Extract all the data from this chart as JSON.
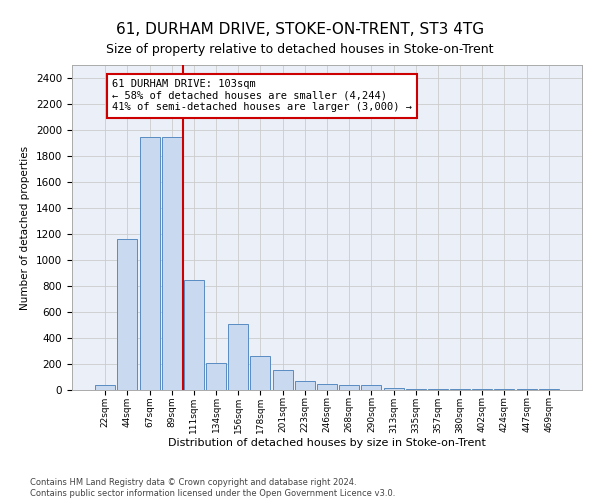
{
  "title": "61, DURHAM DRIVE, STOKE-ON-TRENT, ST3 4TG",
  "subtitle": "Size of property relative to detached houses in Stoke-on-Trent",
  "xlabel": "Distribution of detached houses by size in Stoke-on-Trent",
  "ylabel": "Number of detached properties",
  "categories": [
    "22sqm",
    "44sqm",
    "67sqm",
    "89sqm",
    "111sqm",
    "134sqm",
    "156sqm",
    "178sqm",
    "201sqm",
    "223sqm",
    "246sqm",
    "268sqm",
    "290sqm",
    "313sqm",
    "335sqm",
    "357sqm",
    "380sqm",
    "402sqm",
    "424sqm",
    "447sqm",
    "469sqm"
  ],
  "values": [
    40,
    1160,
    1950,
    1950,
    850,
    210,
    510,
    260,
    155,
    70,
    50,
    40,
    35,
    15,
    5,
    5,
    5,
    5,
    5,
    5,
    5
  ],
  "bar_color": "#c9d9f0",
  "bar_edge_color": "#5a8cc2",
  "red_line_x": 3.5,
  "annotation_text": "61 DURHAM DRIVE: 103sqm\n← 58% of detached houses are smaller (4,244)\n41% of semi-detached houses are larger (3,000) →",
  "annotation_box_color": "#ffffff",
  "annotation_box_edge_color": "#cc0000",
  "ylim": [
    0,
    2500
  ],
  "yticks": [
    0,
    200,
    400,
    600,
    800,
    1000,
    1200,
    1400,
    1600,
    1800,
    2000,
    2200,
    2400
  ],
  "footer_line1": "Contains HM Land Registry data © Crown copyright and database right 2024.",
  "footer_line2": "Contains public sector information licensed under the Open Government Licence v3.0.",
  "background_color": "#ffffff",
  "grid_color": "#cccccc",
  "title_fontsize": 11,
  "subtitle_fontsize": 9,
  "ax_facecolor": "#eaeff8"
}
